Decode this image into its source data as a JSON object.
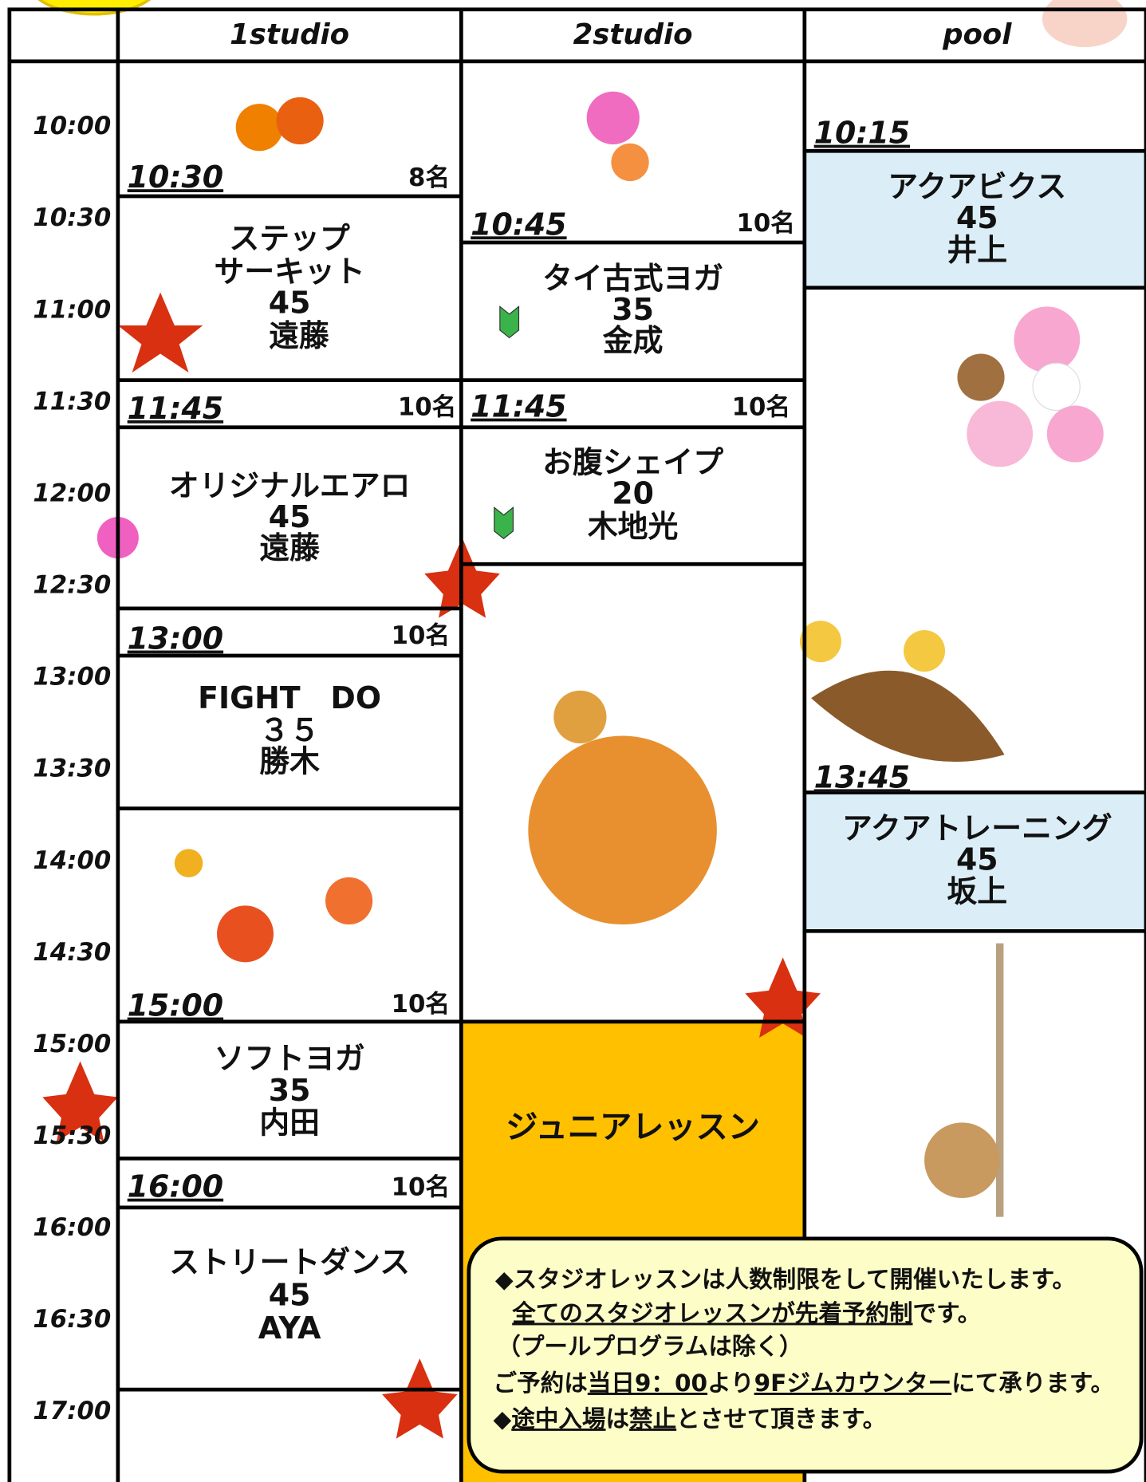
{
  "header": {
    "columns": [
      "1studio",
      "2studio",
      "pool"
    ]
  },
  "times": [
    "10:00",
    "10:30",
    "11:00",
    "11:30",
    "12:00",
    "12:30",
    "13:00",
    "13:30",
    "14:00",
    "14:30",
    "15:00",
    "15:30",
    "16:00",
    "16:30",
    "17:00"
  ],
  "studio1": [
    {
      "start": "10:30",
      "capacity": "8名",
      "title": [
        "ステップ",
        "サーキット"
      ],
      "duration": "45",
      "instructor": "遠藤"
    },
    {
      "start": "11:45",
      "capacity": "10名",
      "title": [
        "オリジナルエアロ"
      ],
      "duration": "45",
      "instructor": "遠藤"
    },
    {
      "start": "13:00",
      "capacity": "10名",
      "title": [
        "FIGHT　DO"
      ],
      "duration": "３５",
      "instructor": "勝木"
    },
    {
      "start": "15:00",
      "capacity": "10名",
      "title": [
        "ソフトヨガ"
      ],
      "duration": "35",
      "instructor": "内田"
    },
    {
      "start": "16:00",
      "capacity": "10名",
      "title": [
        "ストリートダンス"
      ],
      "duration": "45",
      "instructor": "AYA"
    }
  ],
  "studio2": [
    {
      "start": "10:45",
      "capacity": "10名",
      "title": [
        "タイ古式ヨガ"
      ],
      "duration": "35",
      "instructor": "金成"
    },
    {
      "start": "11:45",
      "capacity": "10名",
      "title": [
        "お腹シェイプ"
      ],
      "duration": "20",
      "instructor": "木地光"
    },
    {
      "title": [
        "ジュニアレッスン"
      ]
    }
  ],
  "pool": [
    {
      "start": "10:15",
      "title": [
        "アクアビクス"
      ],
      "duration": "45",
      "instructor": "井上"
    },
    {
      "start": "13:45",
      "title": [
        "アクアトレーニング"
      ],
      "duration": "45",
      "instructor": "坂上"
    }
  ],
  "notice": {
    "lines": [
      [
        {
          "text": "◆スタジオレッスンは人数制限をして開催いたします。"
        }
      ],
      [
        {
          "text": "全てのスタジオレッスンが先着予約制",
          "underline": true
        },
        {
          "text": "です。"
        }
      ],
      [
        {
          "text": "（プールプログラムは除く）"
        }
      ],
      [
        {
          "text": "ご予約は"
        },
        {
          "text": "当日9：00",
          "underline": true
        },
        {
          "text": "より"
        },
        {
          "text": "9Fジムカウンター",
          "underline": true
        },
        {
          "text": "にて承ります。"
        }
      ],
      [
        {
          "text": "◆"
        },
        {
          "text": "途中入場",
          "underline": true
        },
        {
          "text": "は"
        },
        {
          "text": "禁止",
          "underline": true
        },
        {
          "text": "とさせて頂きます。"
        }
      ]
    ]
  }
}
